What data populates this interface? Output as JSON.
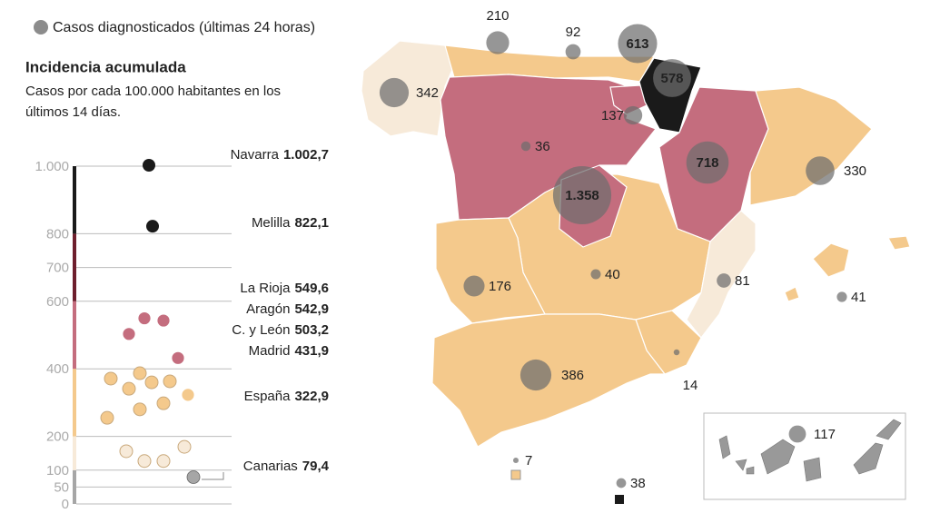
{
  "legend": {
    "label": "Casos diagnosticados (últimas 24 horas)"
  },
  "title": "Incidencia acumulada",
  "subtitle_lines": [
    "Casos por cada 100.000 habitantes en los",
    "últimos 14 días."
  ],
  "scale": {
    "ylim": [
      0,
      1000
    ],
    "yticks": [
      {
        "value": 1000,
        "label": "1.000"
      },
      800,
      700,
      600,
      400,
      200,
      100,
      50,
      0
    ],
    "bands": [
      {
        "from": 0,
        "to": 100,
        "color": "#a6a6a6"
      },
      {
        "from": 100,
        "to": 200,
        "color": "#f7ead9"
      },
      {
        "from": 200,
        "to": 400,
        "color": "#f4c98c"
      },
      {
        "from": 400,
        "to": 600,
        "color": "#c46d7e"
      },
      {
        "from": 600,
        "to": 800,
        "color": "#6e1f2d"
      },
      {
        "from": 800,
        "to": 1000,
        "color": "#1a1a1a"
      }
    ],
    "labeled": [
      {
        "name": "Navarra",
        "value": 1002.7,
        "value_label": "1.002,7"
      },
      {
        "name": "Melilla",
        "value": 822.1,
        "value_label": "822,1"
      },
      {
        "name": "La Rioja",
        "value": 549.6,
        "value_label": "549,6"
      },
      {
        "name": "Aragón",
        "value": 542.9,
        "value_label": "542,9"
      },
      {
        "name": "C. y León",
        "value": 503.2,
        "value_label": "503,2"
      },
      {
        "name": "Madrid",
        "value": 431.9,
        "value_label": "431,9"
      },
      {
        "name": "España",
        "value": 322.9,
        "value_label": "322,9"
      },
      {
        "name": "Canarias",
        "value": 79.4,
        "value_label": "79,4"
      }
    ],
    "unlabeled_values": [
      371,
      387,
      360,
      363,
      341,
      298,
      280,
      255,
      156,
      127,
      127,
      169
    ]
  },
  "map": {
    "bubbles": [
      {
        "value": 210
      },
      {
        "value": 92
      },
      {
        "value": 613
      },
      {
        "value": 578
      },
      {
        "value": 342
      },
      {
        "value": 137
      },
      {
        "value": 36
      },
      {
        "value": 718
      },
      {
        "value": 1358,
        "label": "1.358"
      },
      {
        "value": 330
      },
      {
        "value": 176
      },
      {
        "value": 40
      },
      {
        "value": 81
      },
      {
        "value": 41
      },
      {
        "value": 386
      },
      {
        "value": 14
      },
      {
        "value": 7
      },
      {
        "value": 38
      },
      {
        "value": 117
      }
    ]
  }
}
